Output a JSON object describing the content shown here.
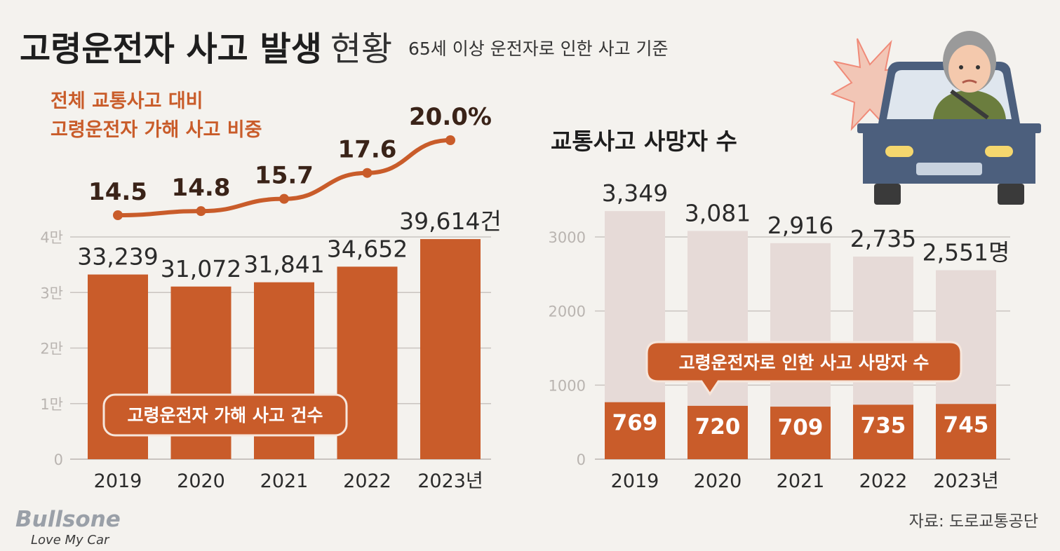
{
  "header": {
    "title_bold": "고령운전자 사고 발생",
    "title_light": "현황",
    "subtitle": "65세 이상 운전자로 인한 사고 기준"
  },
  "colors": {
    "background": "#f4f2ee",
    "bar_orange": "#c95c2a",
    "bar_pink": "#e6dad7",
    "line_orange": "#c95c2a",
    "grid": "#c9c4c0",
    "text_dark": "#2b2b2b",
    "tick_gray": "#b9b4b0",
    "car_body": "#4c5f7d"
  },
  "chart_data": [
    {
      "type": "bar",
      "title": "고령운전자 가해 사고 건수",
      "categories": [
        "2019",
        "2020",
        "2021",
        "2022",
        "2023년"
      ],
      "values": [
        33239,
        31072,
        31841,
        34652,
        39614
      ],
      "value_labels": [
        "33,239",
        "31,072",
        "31,841",
        "34,652",
        "39,614건"
      ],
      "yticks": [
        0,
        10000,
        20000,
        30000,
        40000
      ],
      "ytick_labels": [
        "0",
        "1만",
        "2만",
        "3만",
        "4만"
      ],
      "ylim": [
        0,
        40000
      ],
      "legend_label": "고령운전자 가해 사고 건수",
      "overlay_line": {
        "type": "line",
        "name": "전체 교통사고 대비 고령운전자 가해 사고 비중",
        "title_line1": "전체 교통사고 대비",
        "title_line2": "고령운전자 가해 사고 비중",
        "values": [
          14.5,
          14.8,
          15.7,
          17.6,
          20.0
        ],
        "labels": [
          "14.5",
          "14.8",
          "15.7",
          "17.6",
          "20.0%"
        ]
      }
    },
    {
      "type": "bar",
      "title": "교통사고 사망자 수",
      "categories": [
        "2019",
        "2020",
        "2021",
        "2022",
        "2023년"
      ],
      "series": [
        {
          "name": "교통사고 사망자 수",
          "values": [
            3349,
            3081,
            2916,
            2735,
            2551
          ],
          "labels": [
            "3,349",
            "3,081",
            "2,916",
            "2,735",
            "2,551명"
          ]
        },
        {
          "name": "고령운전자로 인한 사고 사망자 수",
          "values": [
            769,
            720,
            709,
            735,
            745
          ],
          "labels": [
            "769",
            "720",
            "709",
            "735",
            "745"
          ]
        }
      ],
      "yticks": [
        0,
        1000,
        2000,
        3000
      ],
      "ytick_labels": [
        "0",
        "1000",
        "2000",
        "3000"
      ],
      "ylim": [
        0,
        3000
      ],
      "callout_label": "고령운전자로 인한 사고 사망자 수"
    }
  ],
  "source": "자료: 도로교통공단",
  "logo": {
    "name": "Bullsone",
    "tagline": "Love My Car"
  }
}
